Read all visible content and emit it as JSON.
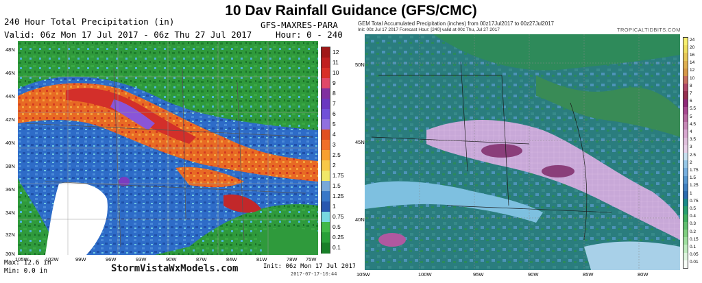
{
  "main_title": "10 Day Rainfall Guidance (GFS/CMC)",
  "left": {
    "title": "240 Hour Total Precipitation (in)",
    "model": "GFS-MAXRES-PARA",
    "valid": "Valid: 06z Mon 17 Jul 2017 - 06z Thu 27 Jul 2017",
    "hour": "Hour: 0 - 240",
    "lat_labels": [
      "48N",
      "46N",
      "44N",
      "42N",
      "40N",
      "38N",
      "36N",
      "34N",
      "32N",
      "30N"
    ],
    "lon_labels": [
      "105W",
      "102W",
      "99W",
      "96W",
      "93W",
      "90W",
      "87W",
      "84W",
      "81W",
      "78W",
      "75W"
    ],
    "colorbar": {
      "labels": [
        "12",
        "11",
        "10",
        "9",
        "8",
        "7",
        "6",
        "5",
        "4",
        "3",
        "2.5",
        "2",
        "1.75",
        "1.5",
        "1.25",
        "1",
        "0.75",
        "0.5",
        "0.25",
        "0.1"
      ],
      "colors": [
        "#a01818",
        "#c02020",
        "#d83028",
        "#e04868",
        "#8030a0",
        "#6a38c0",
        "#7050d8",
        "#9070e0",
        "#e05020",
        "#f07028",
        "#f8a030",
        "#f8c848",
        "#f0e868",
        "#78a8d8",
        "#3878c8",
        "#2858b0",
        "#78d8e0",
        "#40b848",
        "#28a038",
        "#188028"
      ]
    },
    "max": "Max: 12.6 in",
    "min": "Min: 0.0 in",
    "site": "StormVistaWxModels.com",
    "init": "Init: 06z Mon 17 Jul 2017",
    "stamp": "2017-07-17-10:44"
  },
  "right": {
    "title": "GEM Total Accumulated Precipitation (inches) from 00z17Jul2017 to 00z27Jul2017",
    "subtitle": "Init: 00z Jul 17 2017   Forecast Hour: [240]   valid at 00z Thu, Jul 27 2017",
    "brand": "TROPICALTIDBITS.COM",
    "lat_labels": [
      "50N",
      "45N",
      "40N"
    ],
    "lon_labels": [
      "105W",
      "100W",
      "95W",
      "90W",
      "85W",
      "80W"
    ],
    "colorbar": {
      "labels": [
        "24",
        "20",
        "16",
        "14",
        "12",
        "10",
        "8",
        "7",
        "6",
        "5.5",
        "5",
        "4.5",
        "4",
        "3.5",
        "3",
        "2.5",
        "2",
        "1.75",
        "1.5",
        "1.25",
        "1",
        "0.75",
        "0.5",
        "0.4",
        "0.3",
        "0.2",
        "0.15",
        "0.1",
        "0.05",
        "0.01"
      ],
      "colors": [
        "#f8f070",
        "#f0e060",
        "#e8c858",
        "#e0b050",
        "#d89848",
        "#c87060",
        "#b04868",
        "#983050",
        "#902878",
        "#a84890",
        "#b868a0",
        "#c888b8",
        "#d8a8d0",
        "#e0c0dc",
        "#e8d0e8",
        "#c8e0f0",
        "#98c8e8",
        "#78b0e0",
        "#5898d0",
        "#4080c0",
        "#2c6cb0",
        "#1a8a8a",
        "#28a070",
        "#40b060",
        "#60c070",
        "#80d080",
        "#a0e0a0",
        "#c0ecc0",
        "#e0f6e0",
        "#f8fdf8"
      ]
    }
  }
}
